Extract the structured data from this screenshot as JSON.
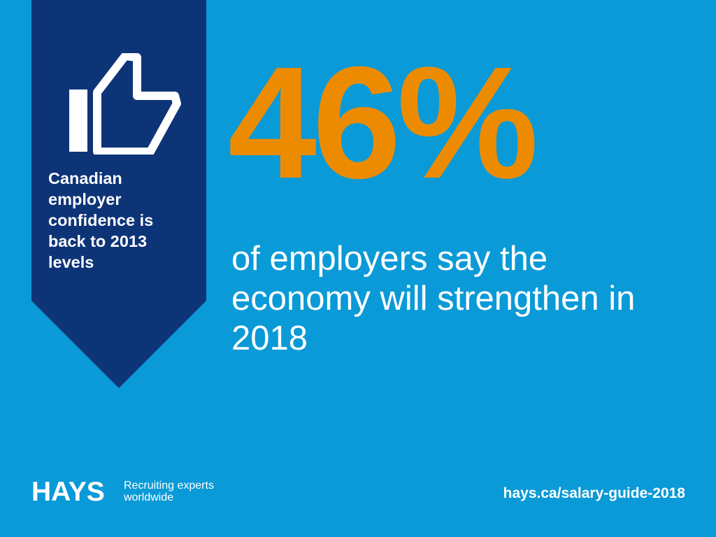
{
  "banner": {
    "text": "Canadian employer confidence is back to 2013 levels",
    "icon": "thumbs-up-icon",
    "color": "#0e3478"
  },
  "stat": {
    "value": "46%",
    "caption": "of employers say the economy will strengthen in 2018",
    "value_color": "#ed8b00"
  },
  "footer": {
    "logo": "HAYS",
    "tagline": "Recruiting experts worldwide",
    "url": "hays.ca/salary-guide-2018"
  },
  "colors": {
    "background": "#0a9ad7",
    "text": "#ffffff"
  }
}
